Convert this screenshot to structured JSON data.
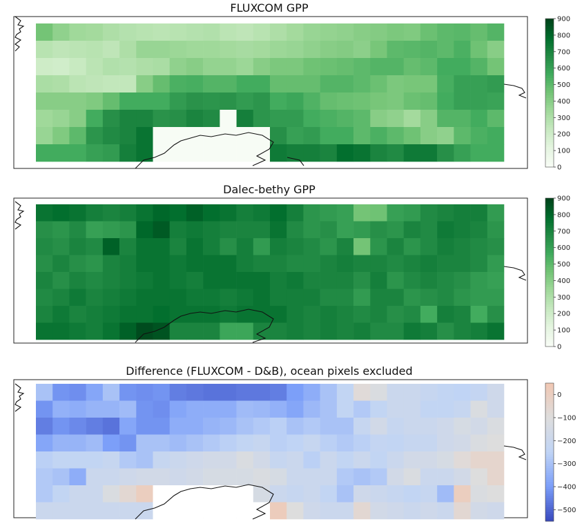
{
  "chart_data": [
    {
      "type": "heatmap",
      "title": "FLUXCOM GPP",
      "colormap": "Greens",
      "colorbar_ticks": [
        "0",
        "100",
        "200",
        "300",
        "400",
        "500",
        "600",
        "700",
        "800",
        "900"
      ],
      "vmin": 0,
      "vmax": 900,
      "rows": 8,
      "cols": 28,
      "values": [
        [
          450,
          380,
          340,
          330,
          300,
          280,
          270,
          260,
          270,
          280,
          290,
          260,
          250,
          270,
          300,
          330,
          360,
          370,
          380,
          400,
          410,
          430,
          420,
          470,
          500,
          510,
          480,
          520
        ],
        [
          270,
          250,
          260,
          270,
          250,
          300,
          360,
          360,
          350,
          340,
          340,
          330,
          320,
          330,
          350,
          360,
          380,
          400,
          410,
          390,
          440,
          500,
          510,
          520,
          500,
          540,
          460,
          400
        ],
        [
          200,
          190,
          220,
          260,
          290,
          280,
          300,
          310,
          380,
          400,
          370,
          370,
          350,
          400,
          430,
          430,
          460,
          470,
          480,
          500,
          520,
          520,
          480,
          500,
          560,
          560,
          520,
          450
        ],
        [
          310,
          300,
          260,
          250,
          240,
          240,
          400,
          480,
          540,
          550,
          520,
          520,
          560,
          560,
          480,
          480,
          480,
          520,
          520,
          500,
          470,
          430,
          440,
          440,
          550,
          600,
          600,
          620
        ],
        [
          400,
          400,
          400,
          420,
          480,
          560,
          560,
          560,
          620,
          650,
          640,
          650,
          620,
          640,
          560,
          580,
          530,
          480,
          470,
          460,
          440,
          430,
          470,
          480,
          560,
          600,
          600,
          590
        ],
        [
          340,
          360,
          400,
          560,
          660,
          700,
          700,
          650,
          660,
          700,
          680,
          660,
          720,
          640,
          620,
          620,
          560,
          540,
          520,
          500,
          400,
          380,
          330,
          400,
          520,
          520,
          560,
          500
        ],
        [
          360,
          420,
          500,
          640,
          680,
          700,
          760,
          720,
          740,
          690,
          640,
          680,
          620,
          740,
          660,
          600,
          620,
          560,
          560,
          500,
          540,
          500,
          460,
          400,
          380,
          500,
          540,
          560
        ],
        [
          560,
          560,
          560,
          600,
          620,
          720,
          760,
          0,
          0,
          0,
          0,
          0,
          0,
          0,
          740,
          720,
          720,
          700,
          780,
          760,
          700,
          680,
          740,
          740,
          660,
          600,
          560,
          560
        ]
      ],
      "masked": [
        [
          7,
          7
        ],
        [
          7,
          8
        ],
        [
          7,
          9
        ],
        [
          7,
          10
        ],
        [
          7,
          11
        ],
        [
          7,
          12
        ],
        [
          7,
          13
        ],
        [
          6,
          7
        ],
        [
          6,
          8
        ],
        [
          6,
          9
        ],
        [
          6,
          10
        ],
        [
          6,
          11
        ],
        [
          6,
          12
        ],
        [
          6,
          13
        ],
        [
          5,
          11
        ]
      ]
    },
    {
      "type": "heatmap",
      "title": "Dalec-bethy GPP",
      "colormap": "Greens",
      "colorbar_ticks": [
        "0",
        "100",
        "200",
        "300",
        "400",
        "500",
        "600",
        "700",
        "800",
        "900"
      ],
      "vmin": 0,
      "vmax": 900,
      "rows": 8,
      "cols": 28,
      "values": [
        [
          760,
          780,
          760,
          720,
          700,
          720,
          760,
          800,
          780,
          820,
          780,
          760,
          720,
          740,
          780,
          720,
          640,
          620,
          600,
          450,
          460,
          600,
          620,
          680,
          700,
          720,
          720,
          620
        ],
        [
          660,
          640,
          680,
          600,
          620,
          640,
          800,
          840,
          720,
          740,
          720,
          700,
          700,
          700,
          760,
          680,
          640,
          660,
          600,
          620,
          660,
          640,
          700,
          680,
          740,
          720,
          700,
          640
        ],
        [
          680,
          660,
          700,
          680,
          820,
          700,
          760,
          760,
          700,
          760,
          720,
          660,
          720,
          620,
          720,
          700,
          680,
          640,
          700,
          450,
          640,
          700,
          640,
          680,
          720,
          700,
          680,
          660
        ],
        [
          660,
          700,
          660,
          640,
          700,
          720,
          760,
          760,
          740,
          760,
          760,
          760,
          720,
          700,
          700,
          680,
          680,
          700,
          720,
          700,
          700,
          680,
          700,
          720,
          700,
          700,
          680,
          620
        ],
        [
          700,
          660,
          700,
          680,
          700,
          720,
          740,
          760,
          740,
          720,
          760,
          760,
          760,
          760,
          720,
          740,
          700,
          700,
          700,
          660,
          720,
          640,
          680,
          700,
          680,
          660,
          620,
          600
        ],
        [
          680,
          700,
          740,
          700,
          720,
          740,
          760,
          760,
          760,
          740,
          740,
          720,
          740,
          760,
          720,
          720,
          720,
          680,
          680,
          620,
          700,
          700,
          640,
          660,
          680,
          640,
          620,
          620
        ],
        [
          700,
          740,
          700,
          720,
          740,
          760,
          760,
          780,
          760,
          760,
          760,
          740,
          760,
          760,
          760,
          720,
          700,
          720,
          700,
          680,
          700,
          660,
          680,
          560,
          720,
          700,
          560,
          660
        ],
        [
          760,
          760,
          740,
          720,
          760,
          820,
          880,
          860,
          700,
          700,
          700,
          580,
          580,
          700,
          700,
          720,
          700,
          720,
          700,
          720,
          680,
          680,
          740,
          720,
          660,
          700,
          720,
          760
        ]
      ]
    },
    {
      "type": "heatmap",
      "title": "Difference (FLUXCOM - D&B), ocean pixels excluded",
      "colormap": "coolwarm",
      "colorbar_ticks": [
        "0",
        "−100",
        "−200",
        "−300",
        "−400",
        "−500"
      ],
      "vmin": -550,
      "vmax": 50,
      "rows": 8,
      "cols": 28,
      "values": [
        [
          -300,
          -420,
          -430,
          -380,
          -300,
          -420,
          -430,
          -420,
          -460,
          -470,
          -480,
          -480,
          -470,
          -470,
          -460,
          -400,
          -360,
          -300,
          -240,
          -80,
          -120,
          -200,
          -200,
          -220,
          -240,
          -250,
          -230,
          -180
        ],
        [
          -420,
          -350,
          -360,
          -340,
          -340,
          -320,
          -420,
          -430,
          -380,
          -360,
          -360,
          -360,
          -320,
          -330,
          -350,
          -380,
          -330,
          -300,
          -240,
          -280,
          -240,
          -200,
          -200,
          -240,
          -240,
          -220,
          -120,
          -180
        ],
        [
          -460,
          -420,
          -440,
          -460,
          -480,
          -380,
          -420,
          -420,
          -360,
          -360,
          -340,
          -330,
          -300,
          -280,
          -260,
          -300,
          -280,
          -300,
          -300,
          -220,
          -160,
          -220,
          -200,
          -200,
          -180,
          -140,
          -160,
          -120
        ],
        [
          -380,
          -340,
          -340,
          -320,
          -400,
          -420,
          -300,
          -300,
          -320,
          -300,
          -280,
          -260,
          -240,
          -220,
          -260,
          -250,
          -220,
          -260,
          -280,
          -260,
          -230,
          -240,
          -220,
          -220,
          -180,
          -160,
          -120,
          -100
        ],
        [
          -260,
          -240,
          -240,
          -240,
          -220,
          -280,
          -300,
          -220,
          -200,
          -180,
          -160,
          -160,
          -120,
          -160,
          -220,
          -200,
          -260,
          -200,
          -240,
          -200,
          -240,
          -200,
          -160,
          -160,
          -140,
          -80,
          -40,
          -40
        ],
        [
          -280,
          -300,
          -360,
          -200,
          -200,
          -180,
          -160,
          -160,
          -180,
          -160,
          -140,
          -140,
          -140,
          -120,
          -140,
          -200,
          -200,
          -200,
          -280,
          -300,
          -280,
          -160,
          -120,
          -200,
          -200,
          -160,
          -100,
          -40
        ],
        [
          -280,
          -240,
          -200,
          -200,
          -120,
          -60,
          10,
          -60,
          -120,
          -120,
          -160,
          -160,
          -160,
          -140,
          -200,
          -220,
          -200,
          -240,
          -300,
          -180,
          -200,
          -220,
          -240,
          -220,
          -320,
          10,
          -120,
          -100
        ],
        [
          -200,
          -200,
          -200,
          -200,
          -200,
          -200,
          -200,
          -220,
          -200,
          -200,
          -200,
          -200,
          -200,
          -200,
          20,
          -100,
          -180,
          -200,
          -200,
          -60,
          -160,
          -180,
          -200,
          -180,
          -200,
          -60,
          -160,
          -180
        ]
      ],
      "masked": [
        [
          7,
          7
        ],
        [
          7,
          8
        ],
        [
          7,
          9
        ],
        [
          7,
          10
        ],
        [
          7,
          11
        ],
        [
          7,
          12
        ],
        [
          7,
          13
        ],
        [
          6,
          7
        ],
        [
          6,
          8
        ],
        [
          6,
          9
        ],
        [
          6,
          10
        ],
        [
          6,
          11
        ],
        [
          6,
          12
        ]
      ]
    }
  ]
}
